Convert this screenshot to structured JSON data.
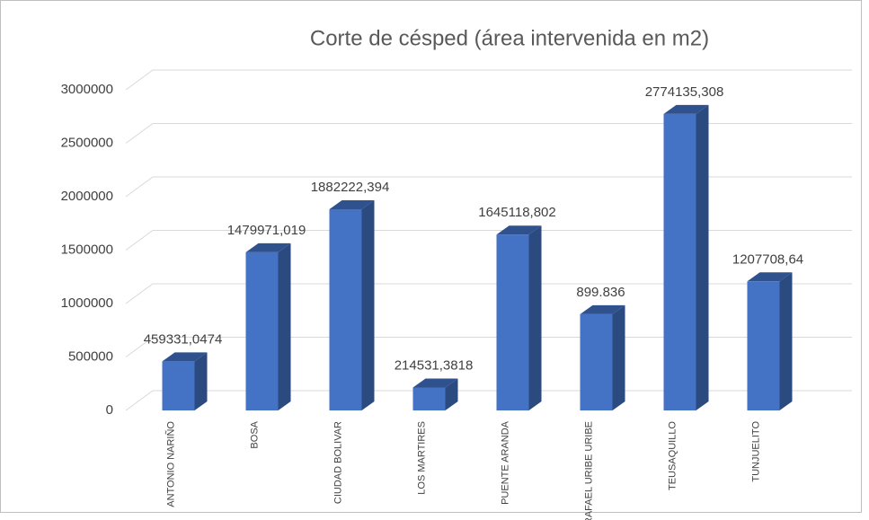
{
  "chart_data": {
    "type": "bar3d",
    "title": "Corte de césped (área intervenida en m2)",
    "categories": [
      "ANTONIO NARIÑO",
      "BOSA",
      "CIUDAD BOLIVAR",
      "LOS MARTIRES",
      "PUENTE ARANDA",
      "RAFAEL URIBE URIBE",
      "TEUSAQUILLO",
      "TUNJUELITO"
    ],
    "values": [
      459331.0474,
      1479971.019,
      1882222.394,
      214531.3818,
      1645118.802,
      899836,
      2774135.308,
      1207708.64
    ],
    "value_labels": [
      "459331,0474",
      "1479971,019",
      "1882222,394",
      "214531,3818",
      "1645118,802",
      "899.836",
      "2774135,308",
      "1207708,64"
    ],
    "color": "#4472c4",
    "ylim": [
      0,
      3000000
    ],
    "yticks": [
      0,
      500000,
      1000000,
      1500000,
      2000000,
      2500000,
      3000000
    ],
    "grid": true
  }
}
